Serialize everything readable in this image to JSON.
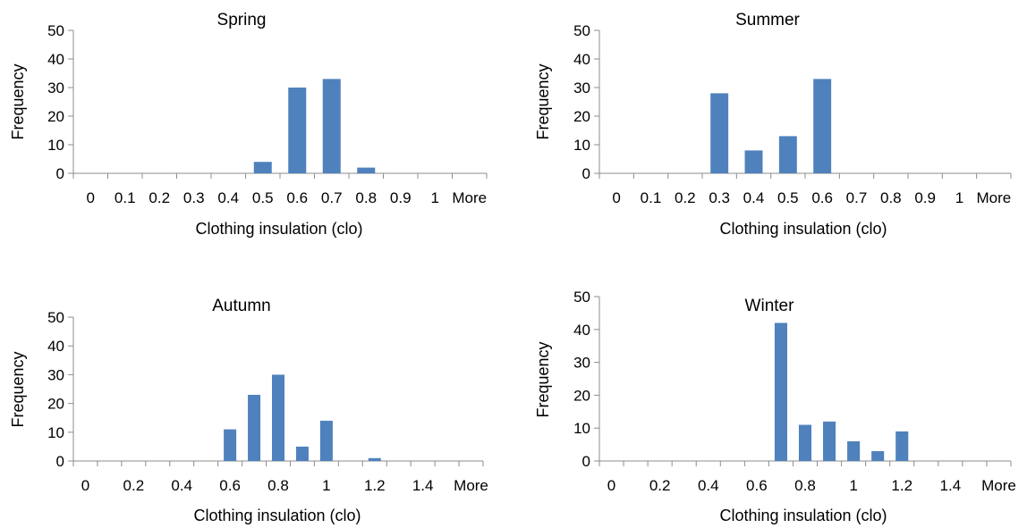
{
  "colors": {
    "bar": "#4f81bd",
    "axis": "#8c8c8c"
  },
  "chart_data": [
    {
      "type": "bar",
      "title": "Spring",
      "xlabel": "Clothing insulation  (clo)",
      "ylabel": "Frequency",
      "ylim": [
        0,
        50
      ],
      "yticks": [
        "0",
        "10",
        "20",
        "30",
        "40",
        "50"
      ],
      "categories": [
        "0",
        "0.1",
        "0.2",
        "0.3",
        "0.4",
        "0.5",
        "0.6",
        "0.7",
        "0.8",
        "0.9",
        "1",
        "More"
      ],
      "tick_labels": [
        "0",
        "0.1",
        "0.2",
        "0.3",
        "0.4",
        "0.5",
        "0.6",
        "0.7",
        "0.8",
        "0.9",
        "1",
        "More"
      ],
      "values": [
        0,
        0,
        0,
        0,
        0,
        4,
        30,
        33,
        2,
        0,
        0,
        0
      ]
    },
    {
      "type": "bar",
      "title": "Summer",
      "xlabel": "Clothing insulation  (clo)",
      "ylabel": "Frequency",
      "ylim": [
        0,
        50
      ],
      "yticks": [
        "0",
        "10",
        "20",
        "30",
        "40",
        "50"
      ],
      "categories": [
        "0",
        "0.1",
        "0.2",
        "0.3",
        "0.4",
        "0.5",
        "0.6",
        "0.7",
        "0.8",
        "0.9",
        "1",
        "More"
      ],
      "tick_labels": [
        "0",
        "0.1",
        "0.2",
        "0.3",
        "0.4",
        "0.5",
        "0.6",
        "0.7",
        "0.8",
        "0.9",
        "1",
        "More"
      ],
      "values": [
        0,
        0,
        0,
        28,
        8,
        13,
        33,
        0,
        0,
        0,
        0,
        0
      ]
    },
    {
      "type": "bar",
      "title": "Autumn",
      "xlabel": "Clothing insulation  (clo)",
      "ylabel": "Frequency",
      "ylim": [
        0,
        50
      ],
      "yticks": [
        "0",
        "10",
        "20",
        "30",
        "40",
        "50"
      ],
      "categories": [
        "0",
        "0.1",
        "0.2",
        "0.3",
        "0.4",
        "0.5",
        "0.6",
        "0.7",
        "0.8",
        "0.9",
        "1",
        "1.1",
        "1.2",
        "1.3",
        "1.4",
        "1.5",
        "More"
      ],
      "tick_labels": [
        "0",
        "",
        "0.2",
        "",
        "0.4",
        "",
        "0.6",
        "",
        "0.8",
        "",
        "1",
        "",
        "1.2",
        "",
        "1.4",
        "",
        "More"
      ],
      "values": [
        0,
        0,
        0,
        0,
        0,
        0,
        11,
        23,
        30,
        5,
        14,
        0,
        1,
        0,
        0,
        0,
        0
      ]
    },
    {
      "type": "bar",
      "title": "Winter",
      "xlabel": "Clothing insulation  (clo)",
      "ylabel": "Frequency",
      "ylim": [
        0,
        50
      ],
      "yticks": [
        "0",
        "10",
        "20",
        "30",
        "40",
        "50"
      ],
      "categories": [
        "0",
        "0.1",
        "0.2",
        "0.3",
        "0.4",
        "0.5",
        "0.6",
        "0.7",
        "0.8",
        "0.9",
        "1",
        "1.1",
        "1.2",
        "1.3",
        "1.4",
        "1.5",
        "More"
      ],
      "tick_labels": [
        "0",
        "",
        "0.2",
        "",
        "0.4",
        "",
        "0.6",
        "",
        "0.8",
        "",
        "1",
        "",
        "1.2",
        "",
        "1.4",
        "",
        "More"
      ],
      "values": [
        0,
        0,
        0,
        0,
        0,
        0,
        0,
        42,
        11,
        12,
        6,
        3,
        9,
        0,
        0,
        0,
        0
      ]
    }
  ]
}
